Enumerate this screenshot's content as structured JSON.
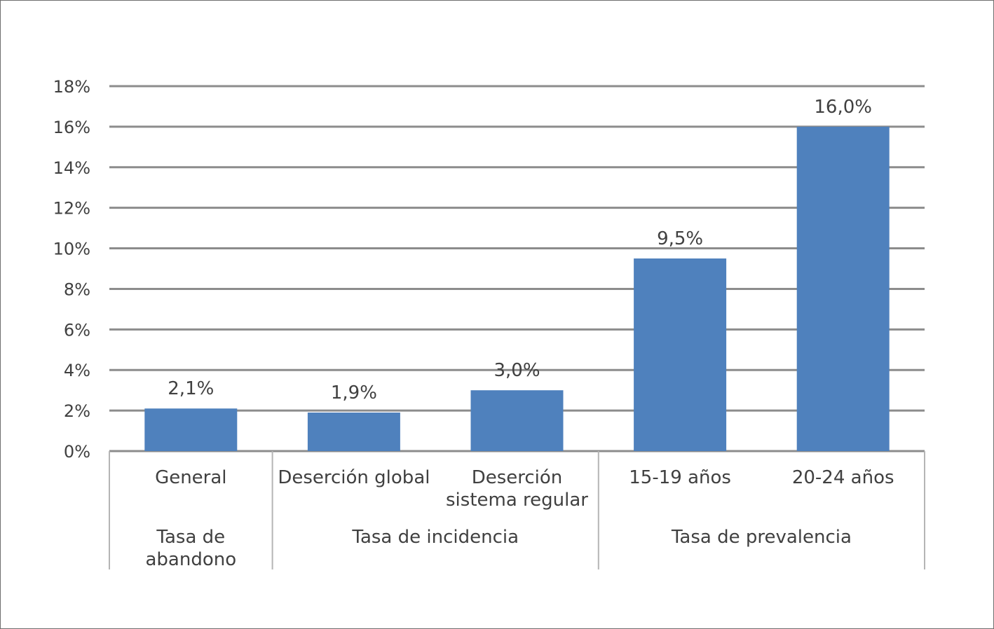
{
  "chart_data": {
    "type": "bar",
    "ylim": [
      0,
      18
    ],
    "y_ticks": [
      "0%",
      "2%",
      "4%",
      "6%",
      "8%",
      "10%",
      "12%",
      "14%",
      "16%",
      "18%"
    ],
    "grid": true,
    "bar_color": "#4f81bd",
    "categories": [
      [
        "General"
      ],
      [
        "Deserción global"
      ],
      [
        "Deserción",
        "sistema regular"
      ],
      [
        "15-19 años"
      ],
      [
        "20-24 años"
      ]
    ],
    "values": [
      2.1,
      1.9,
      3.0,
      9.5,
      16.0
    ],
    "data_labels": [
      "2,1%",
      "1,9%",
      "3,0%",
      "9,5%",
      "16,0%"
    ],
    "groups": [
      {
        "label": [
          "Tasa de",
          "abandono"
        ],
        "span": 1
      },
      {
        "label": [
          "Tasa de incidencia"
        ],
        "span": 2
      },
      {
        "label": [
          "Tasa de prevalencia"
        ],
        "span": 2
      }
    ]
  }
}
